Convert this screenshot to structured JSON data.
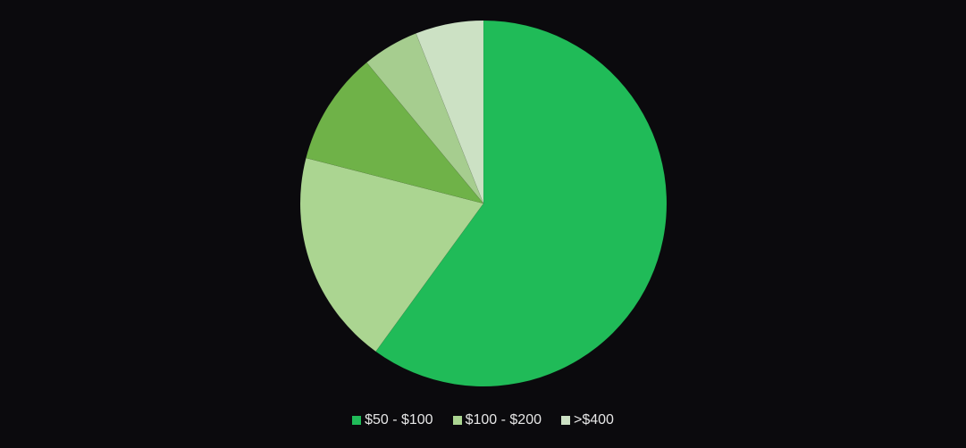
{
  "chart_data": {
    "type": "pie",
    "slices": [
      {
        "label": "$50 - $100",
        "value": 60.0,
        "color": "#20bb58"
      },
      {
        "label": "$100 - $200",
        "value": 19.0,
        "color": "#abd591"
      },
      {
        "label": "",
        "value": 10.0,
        "color": "#6fb248"
      },
      {
        "label": "",
        "value": 5.0,
        "color": "#a6cd8f"
      },
      {
        "label": ">$400",
        "value": 6.0,
        "color": "#cce1c4"
      }
    ],
    "start_angle_deg": 0,
    "direction": "clockwise",
    "legend_position": "bottom"
  },
  "legend": [
    {
      "label": "$50 - $100",
      "color": "#20bb58"
    },
    {
      "label": "$100 - $200",
      "color": "#abd591"
    },
    {
      "label": ">$400",
      "color": "#cce1c4"
    }
  ],
  "colors": {
    "background": "#0b0a0d",
    "text": "#e6e6e6"
  }
}
